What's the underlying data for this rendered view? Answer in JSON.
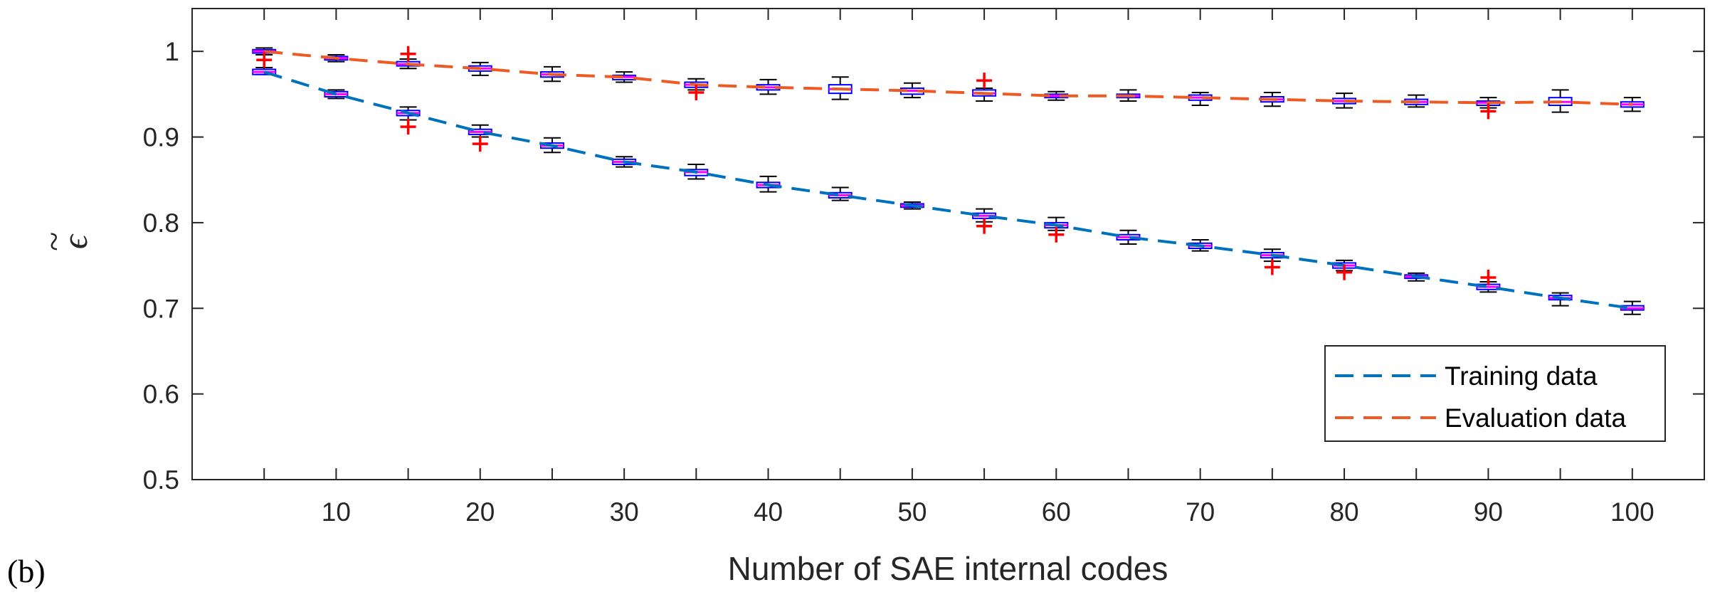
{
  "panel_label": "(b)",
  "colors": {
    "training": "#0072BD",
    "evaluation": "#ED5A24",
    "box_edge": "#0000FF",
    "median": "#FF00FF",
    "whisker": "#000000",
    "outlier": "#FF0000",
    "axis": "#262626"
  },
  "chart_data": {
    "type": "box",
    "title": "",
    "xlabel": "Number of SAE internal codes",
    "ylabel": "ε̃",
    "ylabel_base": "ϵ",
    "ylabel_accent": "~",
    "xlim": [
      0,
      105
    ],
    "ylim": [
      0.5,
      1.05
    ],
    "xticks": [
      10,
      20,
      30,
      40,
      50,
      60,
      70,
      80,
      90,
      100
    ],
    "xtick_labels": [
      "10",
      "20",
      "30",
      "40",
      "50",
      "60",
      "70",
      "80",
      "90",
      "100"
    ],
    "yticks": [
      0.5,
      0.6,
      0.7,
      0.8,
      0.9,
      1.0
    ],
    "ytick_labels": [
      "0.5",
      "0.6",
      "0.7",
      "0.8",
      "0.9",
      "1"
    ],
    "legend_position": "bottom-right",
    "series": [
      {
        "name": "Training data",
        "style": "dashed",
        "x": [
          5,
          10,
          15,
          20,
          25,
          30,
          35,
          40,
          45,
          50,
          55,
          60,
          65,
          70,
          75,
          80,
          85,
          90,
          95,
          100
        ],
        "median": [
          0.976,
          0.95,
          0.928,
          0.906,
          0.89,
          0.871,
          0.859,
          0.844,
          0.832,
          0.82,
          0.808,
          0.797,
          0.783,
          0.773,
          0.762,
          0.75,
          0.737,
          0.725,
          0.712,
          0.7
        ],
        "q1": [
          0.973,
          0.947,
          0.925,
          0.903,
          0.887,
          0.868,
          0.855,
          0.841,
          0.829,
          0.818,
          0.805,
          0.794,
          0.78,
          0.77,
          0.759,
          0.747,
          0.735,
          0.722,
          0.71,
          0.698
        ],
        "q3": [
          0.979,
          0.953,
          0.931,
          0.909,
          0.893,
          0.874,
          0.862,
          0.847,
          0.835,
          0.822,
          0.811,
          0.8,
          0.786,
          0.776,
          0.765,
          0.753,
          0.739,
          0.728,
          0.715,
          0.703
        ],
        "whisker_low": [
          0.973,
          0.945,
          0.92,
          0.9,
          0.882,
          0.865,
          0.851,
          0.836,
          0.826,
          0.816,
          0.801,
          0.791,
          0.775,
          0.767,
          0.755,
          0.744,
          0.732,
          0.719,
          0.703,
          0.693
        ],
        "whisker_high": [
          0.981,
          0.955,
          0.935,
          0.914,
          0.899,
          0.877,
          0.868,
          0.854,
          0.841,
          0.824,
          0.816,
          0.806,
          0.791,
          0.78,
          0.769,
          0.756,
          0.741,
          0.731,
          0.718,
          0.708
        ],
        "outliers": [
          {
            "x": 15,
            "y": 0.912
          },
          {
            "x": 20,
            "y": 0.892
          },
          {
            "x": 55,
            "y": 0.796
          },
          {
            "x": 60,
            "y": 0.786
          },
          {
            "x": 75,
            "y": 0.748
          },
          {
            "x": 80,
            "y": 0.742
          },
          {
            "x": 90,
            "y": 0.736
          }
        ]
      },
      {
        "name": "Evaluation data",
        "style": "dashed",
        "x": [
          5,
          10,
          15,
          20,
          25,
          30,
          35,
          40,
          45,
          50,
          55,
          60,
          65,
          70,
          75,
          80,
          85,
          90,
          95,
          100
        ],
        "median": [
          1.0,
          0.992,
          0.985,
          0.98,
          0.973,
          0.97,
          0.961,
          0.958,
          0.956,
          0.954,
          0.951,
          0.948,
          0.948,
          0.946,
          0.944,
          0.942,
          0.941,
          0.94,
          0.941,
          0.938
        ],
        "q1": [
          0.998,
          0.99,
          0.983,
          0.977,
          0.97,
          0.967,
          0.958,
          0.955,
          0.951,
          0.95,
          0.948,
          0.946,
          0.946,
          0.943,
          0.941,
          0.939,
          0.938,
          0.937,
          0.937,
          0.935
        ],
        "q3": [
          1.002,
          0.994,
          0.988,
          0.983,
          0.976,
          0.972,
          0.964,
          0.961,
          0.961,
          0.957,
          0.955,
          0.95,
          0.95,
          0.949,
          0.947,
          0.945,
          0.944,
          0.942,
          0.946,
          0.941
        ],
        "whisker_low": [
          0.996,
          0.988,
          0.98,
          0.972,
          0.965,
          0.964,
          0.955,
          0.95,
          0.944,
          0.946,
          0.942,
          0.943,
          0.942,
          0.937,
          0.936,
          0.934,
          0.935,
          0.934,
          0.929,
          0.93
        ],
        "whisker_high": [
          1.004,
          0.996,
          0.991,
          0.987,
          0.982,
          0.976,
          0.968,
          0.967,
          0.97,
          0.963,
          0.957,
          0.953,
          0.955,
          0.952,
          0.952,
          0.951,
          0.949,
          0.946,
          0.955,
          0.946
        ],
        "outliers": [
          {
            "x": 5,
            "y": 0.99
          },
          {
            "x": 15,
            "y": 0.997
          },
          {
            "x": 35,
            "y": 0.952
          },
          {
            "x": 55,
            "y": 0.966
          },
          {
            "x": 90,
            "y": 0.93
          }
        ]
      }
    ]
  }
}
